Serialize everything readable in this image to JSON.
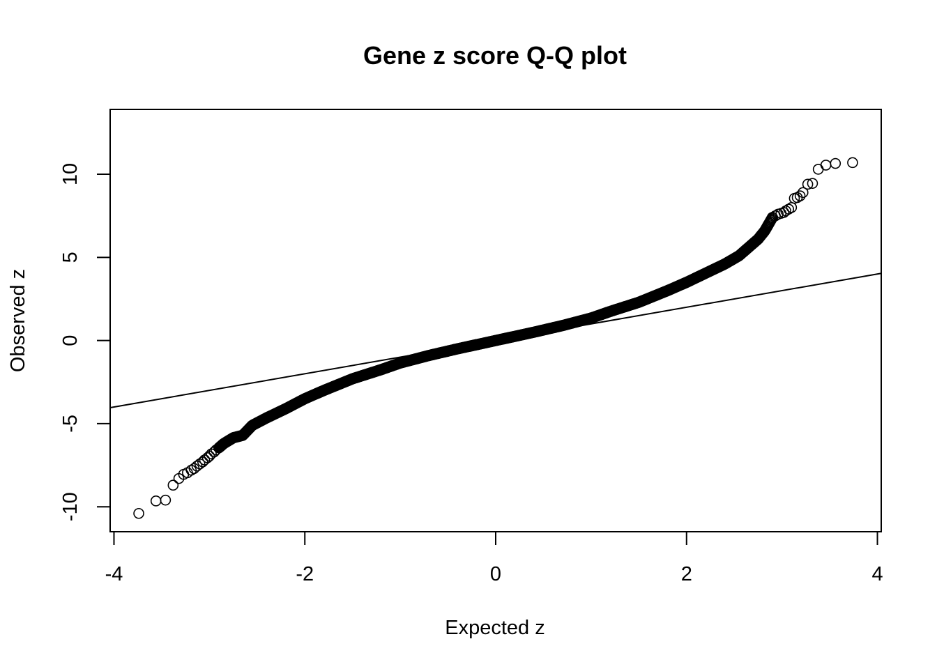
{
  "chart_data": {
    "type": "scatter",
    "title": "Gene z score Q-Q plot",
    "xlabel": "Expected z",
    "ylabel": "Observed z",
    "xlim": [
      -4.04,
      4.04
    ],
    "ylim": [
      -11.5,
      13.9
    ],
    "x_ticks": [
      -4,
      -2,
      0,
      2,
      4
    ],
    "x_tick_labels": [
      "-4",
      "-2",
      "0",
      "2",
      "4"
    ],
    "y_ticks": [
      -10,
      -5,
      0,
      5,
      10
    ],
    "y_tick_labels": [
      "-10",
      "-5",
      "0",
      "5",
      "10"
    ],
    "grid": false,
    "legend": "none",
    "reference_line": {
      "intercept": 0,
      "slope": 1
    },
    "outlier_points": [
      [
        -3.74,
        -10.4
      ],
      [
        -3.56,
        -9.65
      ],
      [
        -3.46,
        -9.6
      ],
      [
        -3.38,
        -8.7
      ],
      [
        -3.32,
        -8.3
      ],
      [
        -3.27,
        -8.05
      ],
      [
        -3.23,
        -7.95
      ],
      [
        -3.19,
        -7.8
      ],
      [
        -3.16,
        -7.7
      ],
      [
        -3.13,
        -7.55
      ],
      [
        -3.1,
        -7.42
      ],
      [
        -3.07,
        -7.3
      ],
      [
        -3.05,
        -7.18
      ],
      [
        -3.02,
        -7.05
      ],
      [
        -3.0,
        -6.95
      ],
      [
        -2.98,
        -6.82
      ],
      [
        -2.95,
        -6.7
      ],
      [
        -2.93,
        -6.58
      ],
      [
        -2.9,
        -6.45
      ],
      [
        3.74,
        10.7
      ],
      [
        3.56,
        10.65
      ],
      [
        3.46,
        10.55
      ],
      [
        3.38,
        10.3
      ],
      [
        3.32,
        9.45
      ],
      [
        3.27,
        9.4
      ],
      [
        3.22,
        8.9
      ],
      [
        3.19,
        8.7
      ],
      [
        3.16,
        8.6
      ],
      [
        3.13,
        8.55
      ],
      [
        3.1,
        8.0
      ],
      [
        3.07,
        7.9
      ],
      [
        3.04,
        7.8
      ],
      [
        3.02,
        7.7
      ],
      [
        2.99,
        7.65
      ],
      [
        2.96,
        7.6
      ],
      [
        2.93,
        7.5
      ],
      [
        2.9,
        7.4
      ]
    ],
    "curve_knots": [
      [
        -2.9,
        -6.45
      ],
      [
        -2.85,
        -6.2
      ],
      [
        -2.75,
        -5.85
      ],
      [
        -2.65,
        -5.7
      ],
      [
        -2.55,
        -5.1
      ],
      [
        -2.4,
        -4.65
      ],
      [
        -2.2,
        -4.1
      ],
      [
        -2.0,
        -3.5
      ],
      [
        -1.8,
        -3.0
      ],
      [
        -1.5,
        -2.3
      ],
      [
        -1.2,
        -1.75
      ],
      [
        -1.0,
        -1.35
      ],
      [
        -0.7,
        -0.9
      ],
      [
        -0.4,
        -0.5
      ],
      [
        0.0,
        0.0
      ],
      [
        0.4,
        0.5
      ],
      [
        0.7,
        0.9
      ],
      [
        1.0,
        1.35
      ],
      [
        1.2,
        1.75
      ],
      [
        1.5,
        2.3
      ],
      [
        1.8,
        3.0
      ],
      [
        2.0,
        3.5
      ],
      [
        2.2,
        4.05
      ],
      [
        2.4,
        4.6
      ],
      [
        2.55,
        5.1
      ],
      [
        2.65,
        5.6
      ],
      [
        2.75,
        6.1
      ],
      [
        2.82,
        6.6
      ],
      [
        2.87,
        7.1
      ],
      [
        2.9,
        7.4
      ]
    ]
  }
}
